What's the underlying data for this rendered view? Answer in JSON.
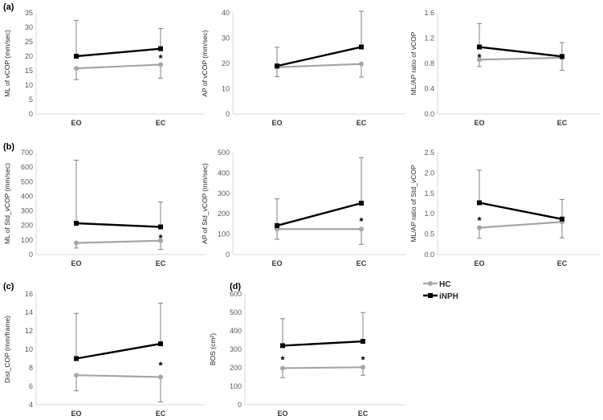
{
  "legend": {
    "hc": "HC",
    "inph": "iNPH"
  },
  "colors": {
    "hc": "#a6a6a6",
    "inph": "#000000",
    "axis": "#d9d9d9",
    "error": "#808080"
  },
  "chart_data": [
    {
      "type": "line",
      "panel_label": "(a)",
      "title": "",
      "categories": [
        "EO",
        "EC"
      ],
      "xlabel": "",
      "ylabel": "ML of vCOP (mm/sec)",
      "ylim": [
        0,
        35
      ],
      "yticks": [
        "0",
        "5",
        "10",
        "15",
        "20",
        "25",
        "30",
        "35"
      ],
      "series": [
        {
          "name": "HC",
          "values": [
            15.8,
            17.1
          ],
          "error_low": [
            11.9,
            12.4
          ],
          "error_high": null
        },
        {
          "name": "iNPH",
          "values": [
            20.0,
            22.6
          ],
          "error_low": null,
          "error_high": [
            32.4,
            29.6
          ]
        }
      ],
      "annotations": [
        {
          "text": "*",
          "category": 1,
          "y": 19.5
        }
      ]
    },
    {
      "type": "line",
      "panel_label": "",
      "title": "",
      "categories": [
        "EO",
        "EC"
      ],
      "xlabel": "",
      "ylabel": "AP of vCOP (mm/sec)",
      "ylim": [
        0,
        40
      ],
      "yticks": [
        "0",
        "10",
        "20",
        "30",
        "40"
      ],
      "series": [
        {
          "name": "HC",
          "values": [
            18.5,
            19.8
          ],
          "error_low": [
            14.8,
            14.6
          ],
          "error_high": null
        },
        {
          "name": "iNPH",
          "values": [
            19.0,
            26.5
          ],
          "error_low": null,
          "error_high": [
            26.4,
            40.6
          ]
        }
      ],
      "annotations": []
    },
    {
      "type": "line",
      "panel_label": "",
      "title": "",
      "categories": [
        "EO",
        "EC"
      ],
      "xlabel": "",
      "ylabel": "ML/AP ratio of vCOP",
      "ylim": [
        0,
        1.6
      ],
      "yticks": [
        "0.0",
        "0.4",
        "0.8",
        "1.2",
        "1.6"
      ],
      "series": [
        {
          "name": "HC",
          "values": [
            0.86,
            0.89
          ],
          "error_low": [
            0.75,
            0.69
          ],
          "error_high": null
        },
        {
          "name": "iNPH",
          "values": [
            1.06,
            0.91
          ],
          "error_low": null,
          "error_high": [
            1.43,
            1.13
          ]
        }
      ],
      "annotations": [
        {
          "text": "*",
          "category": 0,
          "y": 0.9
        }
      ]
    },
    {
      "type": "line",
      "panel_label": "(b)",
      "title": "",
      "categories": [
        "EO",
        "EC"
      ],
      "xlabel": "",
      "ylabel": "ML of Std_vCOP (mm/sec)",
      "ylim": [
        0,
        700
      ],
      "yticks": [
        "0",
        "100",
        "200",
        "300",
        "400",
        "500",
        "600",
        "700"
      ],
      "series": [
        {
          "name": "HC",
          "values": [
            80,
            95
          ],
          "error_low": [
            45,
            35
          ],
          "error_high": null
        },
        {
          "name": "iNPH",
          "values": [
            215,
            190
          ],
          "error_low": null,
          "error_high": [
            648,
            362
          ]
        }
      ],
      "annotations": [
        {
          "text": "*",
          "category": 1,
          "y": 115
        }
      ]
    },
    {
      "type": "line",
      "panel_label": "",
      "title": "",
      "categories": [
        "EO",
        "EC"
      ],
      "xlabel": "",
      "ylabel": "AP of Std_vCOP (mm/sec)",
      "ylim": [
        0,
        500
      ],
      "yticks": [
        "0",
        "100",
        "200",
        "300",
        "400",
        "500"
      ],
      "series": [
        {
          "name": "HC",
          "values": [
            125,
            125
          ],
          "error_low": [
            75,
            50
          ],
          "error_high": null
        },
        {
          "name": "iNPH",
          "values": [
            142,
            252
          ],
          "error_low": null,
          "error_high": [
            273,
            475
          ]
        }
      ],
      "annotations": [
        {
          "text": "*",
          "category": 1,
          "y": 165
        }
      ]
    },
    {
      "type": "line",
      "panel_label": "",
      "title": "",
      "categories": [
        "EO",
        "EC"
      ],
      "xlabel": "",
      "ylabel": "ML/AP ratio of Std_vCOP",
      "ylim": [
        0,
        2.5
      ],
      "yticks": [
        "0.0",
        "0.5",
        "1.0",
        "1.5",
        "2.0",
        "2.5"
      ],
      "series": [
        {
          "name": "HC",
          "values": [
            0.66,
            0.8
          ],
          "error_low": [
            0.4,
            0.41
          ],
          "error_high": null
        },
        {
          "name": "iNPH",
          "values": [
            1.27,
            0.87
          ],
          "error_low": null,
          "error_high": [
            2.07,
            1.35
          ]
        }
      ],
      "annotations": [
        {
          "text": "*",
          "category": 0,
          "y": 0.85
        }
      ]
    },
    {
      "type": "line",
      "panel_label": "(c)",
      "title": "",
      "categories": [
        "EO",
        "EC"
      ],
      "xlabel": "",
      "ylabel": "Dist_COP (mm/frame)",
      "ylim": [
        4,
        16
      ],
      "yticks": [
        "4",
        "6",
        "8",
        "10",
        "12",
        "14",
        "16"
      ],
      "series": [
        {
          "name": "HC",
          "values": [
            7.2,
            7.0
          ],
          "error_low": [
            5.5,
            4.3
          ],
          "error_high": null
        },
        {
          "name": "iNPH",
          "values": [
            9.0,
            10.6
          ],
          "error_low": null,
          "error_high": [
            13.9,
            15.0
          ]
        }
      ],
      "annotations": [
        {
          "text": "*",
          "category": 1,
          "y": 8.3
        }
      ]
    },
    {
      "type": "line",
      "panel_label": "(d)",
      "title": "",
      "categories": [
        "EO",
        "EC"
      ],
      "xlabel": "",
      "ylabel": "BOS (cm²)",
      "ylim": [
        0,
        600
      ],
      "yticks": [
        "0",
        "100",
        "200",
        "300",
        "400",
        "500",
        "600"
      ],
      "series": [
        {
          "name": "HC",
          "values": [
            198,
            203
          ],
          "error_low": [
            147,
            160
          ],
          "error_high": null
        },
        {
          "name": "iNPH",
          "values": [
            320,
            343
          ],
          "error_low": null,
          "error_high": [
            466,
            499
          ]
        }
      ],
      "annotations": [
        {
          "text": "*",
          "category": 0,
          "y": 245
        },
        {
          "text": "*",
          "category": 1,
          "y": 245
        }
      ]
    }
  ]
}
